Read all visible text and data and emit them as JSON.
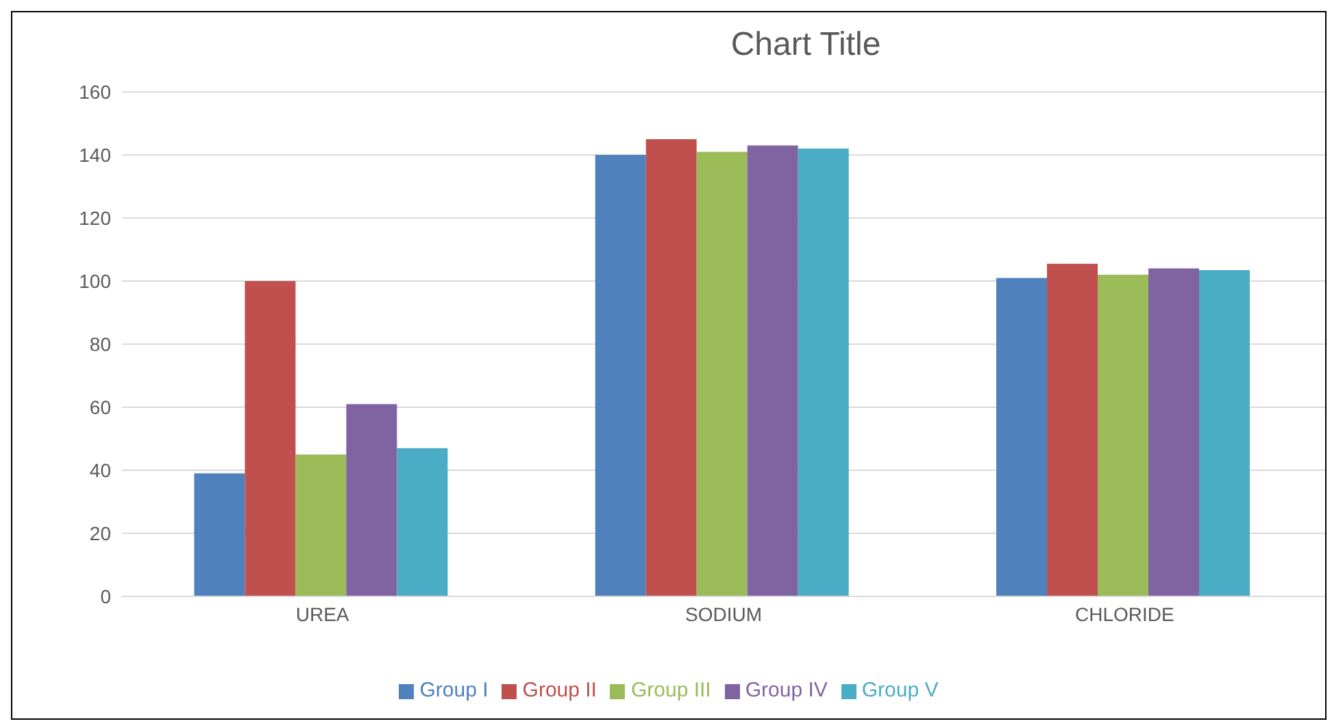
{
  "chart_data": {
    "type": "bar",
    "title": "Chart Title",
    "categories": [
      "UREA",
      "SODIUM",
      "CHLORIDE"
    ],
    "series": [
      {
        "name": "Group I",
        "color": "#4f81bd",
        "values": [
          39,
          140,
          101
        ]
      },
      {
        "name": "Group II",
        "color": "#c0504d",
        "values": [
          100,
          145,
          105.5
        ]
      },
      {
        "name": "Group III",
        "color": "#9bbb59",
        "values": [
          45,
          141,
          102
        ]
      },
      {
        "name": "Group IV",
        "color": "#8064a2",
        "values": [
          61,
          143,
          104
        ]
      },
      {
        "name": "Group V",
        "color": "#4bacc6",
        "values": [
          47,
          142,
          103.5
        ]
      }
    ],
    "ylim": [
      0,
      160
    ],
    "yticks": [
      0,
      20,
      40,
      60,
      80,
      100,
      120,
      140,
      160
    ],
    "grid": "y",
    "legend": "bottom"
  }
}
